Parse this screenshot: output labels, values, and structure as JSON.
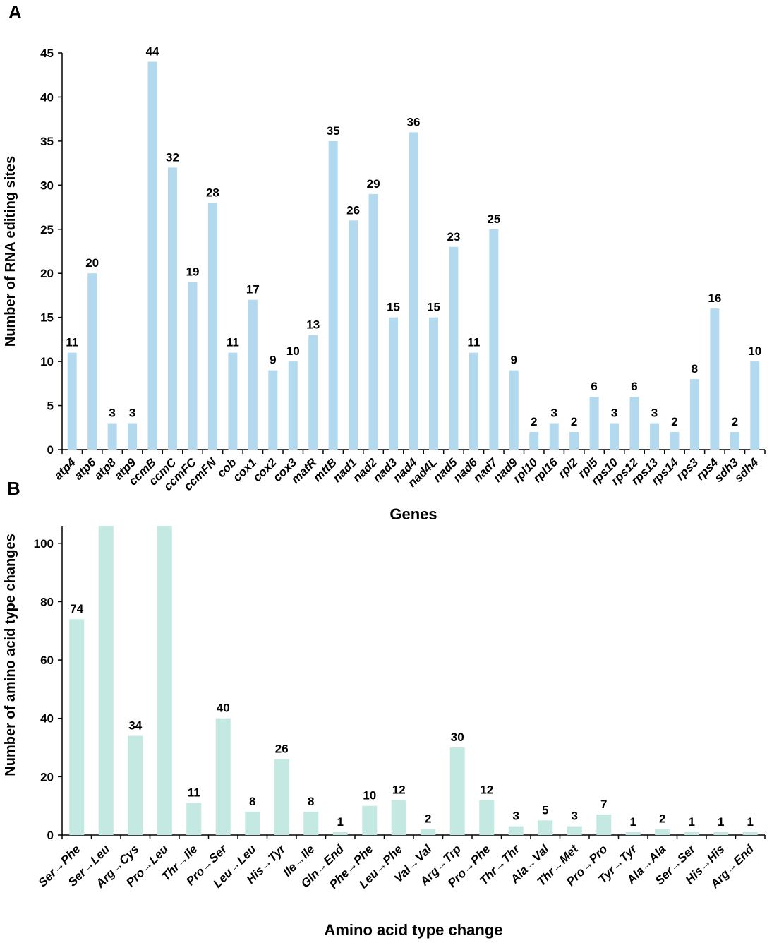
{
  "colors": {
    "barA": "#b3d9ef",
    "barB": "#c4e8e2",
    "axis": "#000000"
  },
  "chart_data": [
    {
      "panel": "A",
      "type": "bar",
      "xlabel": "Genes",
      "ylabel": "Number of RNA editing sites",
      "ylim": [
        0,
        45
      ],
      "yticks": [
        0,
        5,
        10,
        15,
        20,
        25,
        30,
        35,
        40,
        45
      ],
      "categories": [
        "atp4",
        "atp6",
        "atp8",
        "atp9",
        "ccmB",
        "ccmC",
        "ccmFC",
        "ccmFN",
        "cob",
        "cox1",
        "cox2",
        "cox3",
        "matR",
        "mttB",
        "nad1",
        "nad2",
        "nad3",
        "nad4",
        "nad4L",
        "nad5",
        "nad6",
        "nad7",
        "nad9",
        "rpl10",
        "rpl16",
        "rpl2",
        "rpl5",
        "rps10",
        "rps12",
        "rps13",
        "rps14",
        "rps3",
        "rps4",
        "sdh3",
        "sdh4"
      ],
      "values": [
        11,
        20,
        3,
        3,
        44,
        32,
        19,
        28,
        11,
        17,
        9,
        10,
        13,
        35,
        26,
        29,
        15,
        36,
        15,
        23,
        11,
        25,
        9,
        2,
        3,
        2,
        6,
        3,
        6,
        3,
        2,
        8,
        16,
        2,
        10
      ]
    },
    {
      "panel": "B",
      "type": "bar",
      "xlabel": "Amino acid type change",
      "ylabel": "Number of amino acid type changes",
      "ylim": [
        0,
        106
      ],
      "yticks": [
        0,
        20,
        40,
        60,
        80,
        100
      ],
      "categories": [
        "Ser→Phe",
        "Ser→Leu",
        "Arg→Cys",
        "Pro→Leu",
        "Thr→Ile",
        "Pro→Ser",
        "Leu→Leu",
        "His→Tyr",
        "Ile→Ile",
        "Gln→End",
        "Phe→Phe",
        "Leu→Phe",
        "Val→Val",
        "Arg→Trp",
        "Pro→Phe",
        "Thr→Thr",
        "Ala→Val",
        "Thr→Met",
        "Pro→Pro",
        "Tyr→Tyr",
        "Ala→Ala",
        "Ser→Ser",
        "His→His",
        "Arg→End"
      ],
      "values": [
        74,
        106,
        34,
        106,
        11,
        40,
        8,
        26,
        8,
        1,
        10,
        12,
        2,
        30,
        12,
        3,
        5,
        3,
        7,
        1,
        2,
        1,
        1,
        1
      ],
      "data_labels": [
        "74",
        "",
        "34",
        "",
        "11",
        "40",
        "8",
        "26",
        "8",
        "1",
        "10",
        "12",
        "2",
        "30",
        "12",
        "3",
        "5",
        "3",
        "7",
        "1",
        "2",
        "1",
        "1",
        "1"
      ]
    }
  ]
}
